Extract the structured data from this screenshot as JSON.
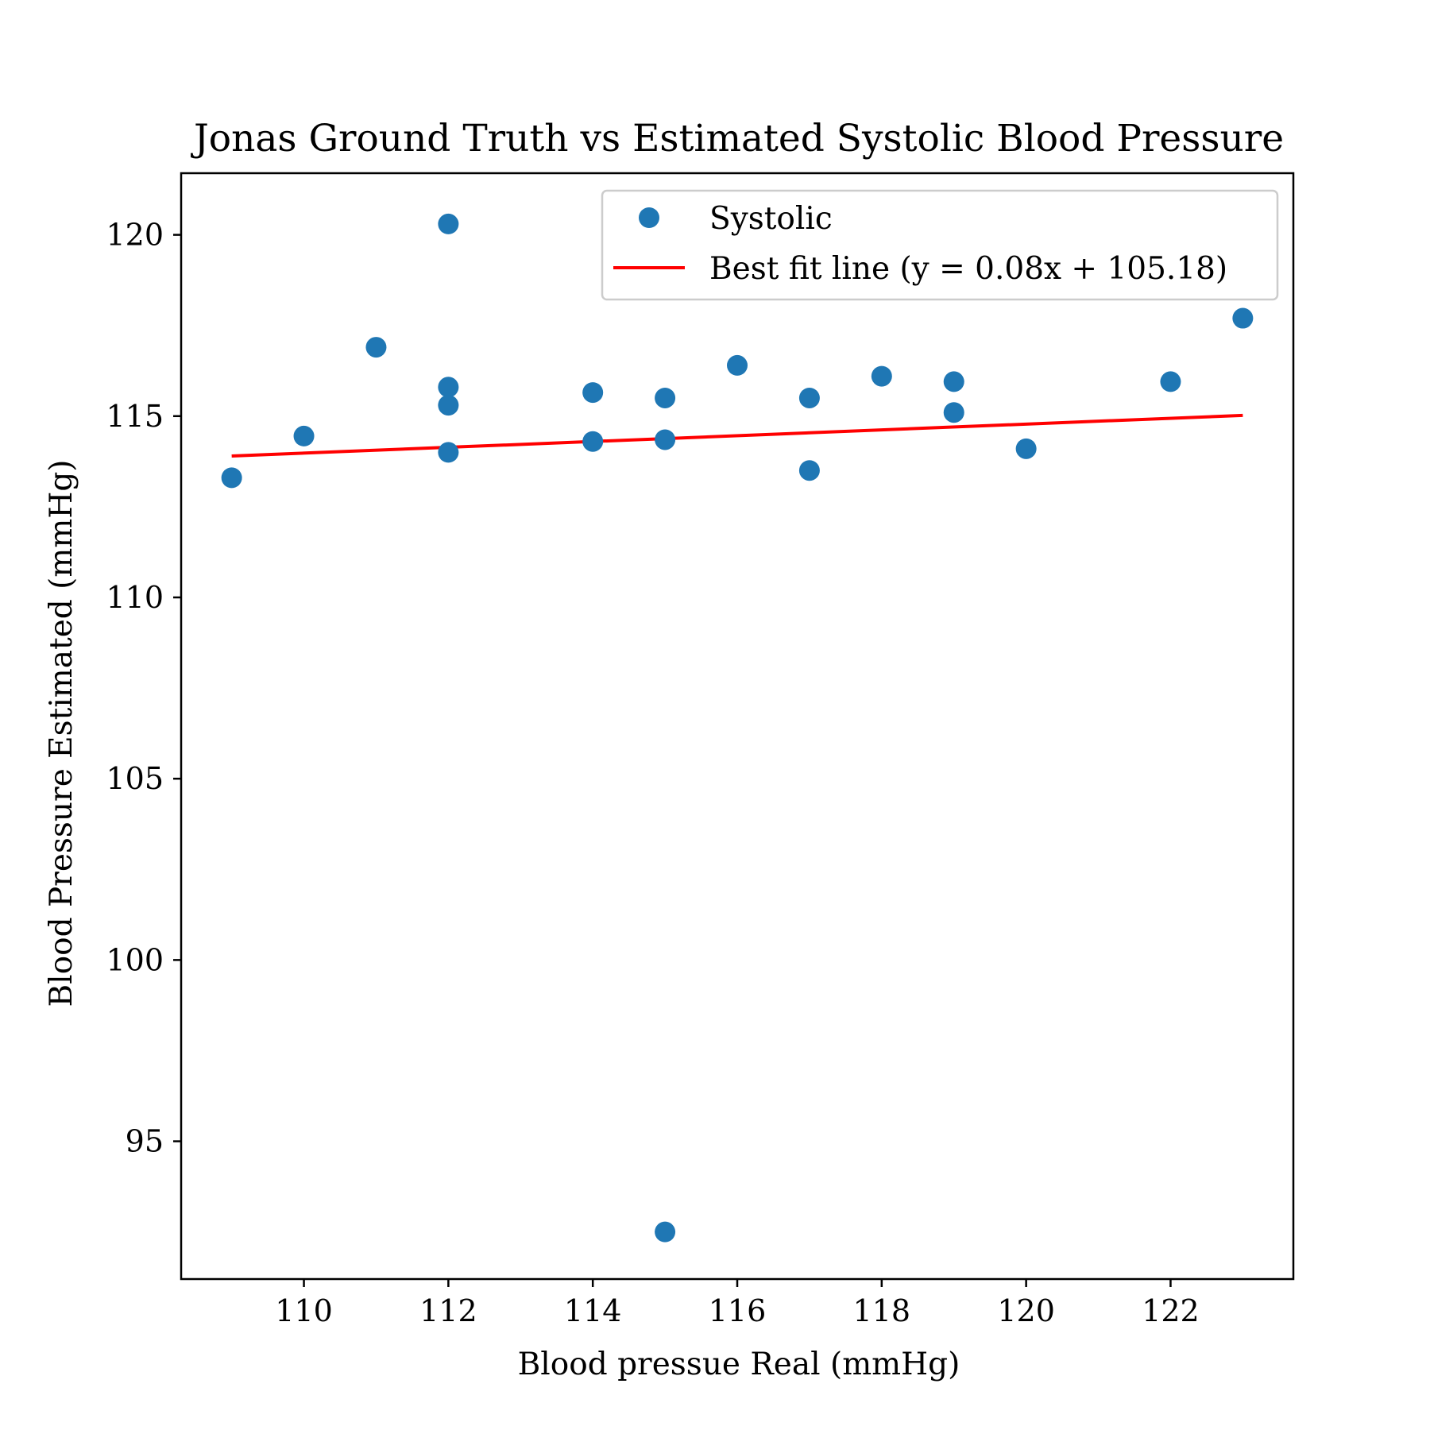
{
  "chart_data": {
    "type": "scatter",
    "title": "Jonas Ground Truth vs Estimated Systolic Blood Pressure",
    "xlabel": "Blood pressue Real (mmHg)",
    "ylabel": "Blood Pressure Estimated (mmHg)",
    "xlim": [
      108.3,
      123.7
    ],
    "ylim": [
      91.2,
      121.7
    ],
    "xticks": [
      110,
      112,
      114,
      116,
      118,
      120,
      122
    ],
    "yticks": [
      95,
      100,
      105,
      110,
      115,
      120
    ],
    "grid": false,
    "legend_position": "top-right",
    "series": [
      {
        "name": "Systolic",
        "kind": "scatter",
        "color": "#1f77b4",
        "points": [
          {
            "x": 109,
            "y": 113.3
          },
          {
            "x": 110,
            "y": 114.45
          },
          {
            "x": 111,
            "y": 116.9
          },
          {
            "x": 112,
            "y": 120.3
          },
          {
            "x": 112,
            "y": 115.8
          },
          {
            "x": 112,
            "y": 115.3
          },
          {
            "x": 112,
            "y": 114.0
          },
          {
            "x": 114,
            "y": 115.65
          },
          {
            "x": 114,
            "y": 114.3
          },
          {
            "x": 115,
            "y": 115.5
          },
          {
            "x": 115,
            "y": 114.35
          },
          {
            "x": 115,
            "y": 92.5
          },
          {
            "x": 116,
            "y": 116.4
          },
          {
            "x": 117,
            "y": 115.5
          },
          {
            "x": 117,
            "y": 113.5
          },
          {
            "x": 118,
            "y": 116.1
          },
          {
            "x": 119,
            "y": 115.95
          },
          {
            "x": 119,
            "y": 115.1
          },
          {
            "x": 120,
            "y": 114.1
          },
          {
            "x": 122,
            "y": 115.95
          },
          {
            "x": 123,
            "y": 117.7
          }
        ]
      },
      {
        "name": "Best fit line (y = 0.08x + 105.18)",
        "kind": "line",
        "color": "#ff0000",
        "slope": 0.08,
        "intercept": 105.18,
        "x_range": [
          109,
          123
        ]
      }
    ]
  }
}
